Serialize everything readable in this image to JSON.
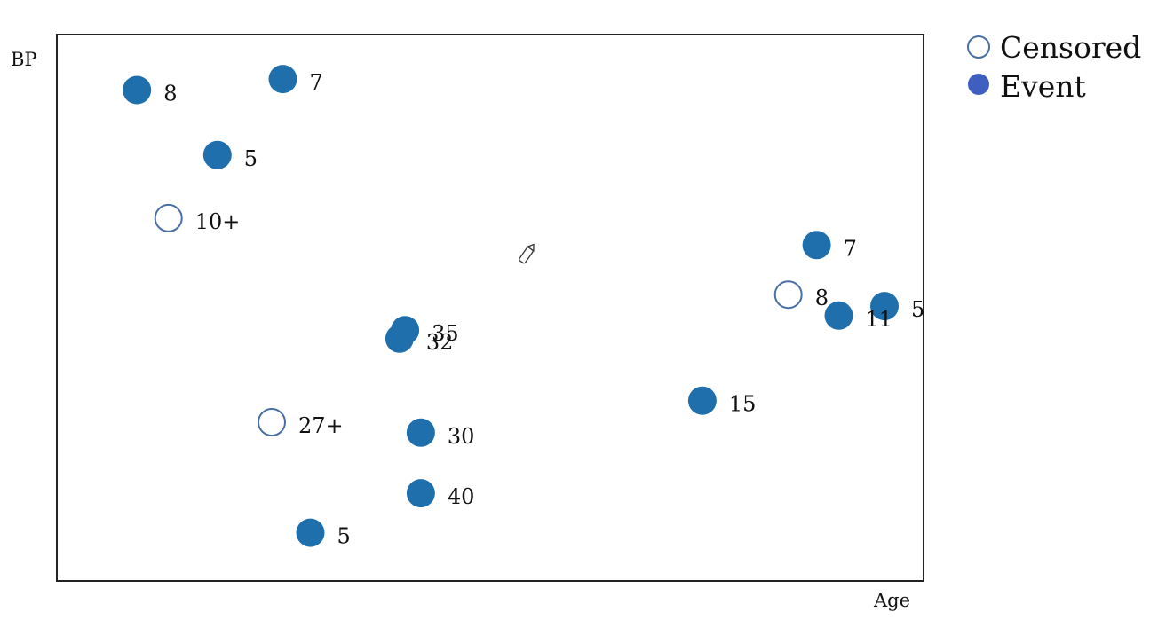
{
  "colors": {
    "event_fill": "#1f6fad",
    "censored_stroke": "#4a6fa5",
    "legend_event_fill": "#3f5fc0",
    "frame": "#222222",
    "text": "#111111"
  },
  "icons": {
    "cursor": "pencil-cursor-icon"
  },
  "chart_data": {
    "type": "scatter",
    "xlabel": "Age",
    "ylabel": "BP",
    "xlim": [
      0,
      100
    ],
    "ylim": [
      0,
      100
    ],
    "grid": false,
    "legend_position": "outside-top-right",
    "legend": [
      {
        "label": "Censored",
        "marker": "open-circle"
      },
      {
        "label": "Event",
        "marker": "filled-circle"
      }
    ],
    "series": [
      {
        "name": "Event",
        "points": [
          {
            "x": 5.2,
            "y": 93.0,
            "label": "8"
          },
          {
            "x": 23.7,
            "y": 95.2,
            "label": "7"
          },
          {
            "x": 15.4,
            "y": 80.0,
            "label": "5"
          },
          {
            "x": 91.4,
            "y": 62.0,
            "label": "7"
          },
          {
            "x": 94.2,
            "y": 47.9,
            "label": "11"
          },
          {
            "x": 100.0,
            "y": 49.8,
            "label": "5"
          },
          {
            "x": 39.2,
            "y": 45.0,
            "label": "35"
          },
          {
            "x": 38.5,
            "y": 43.3,
            "label": "32"
          },
          {
            "x": 76.9,
            "y": 30.9,
            "label": "15"
          },
          {
            "x": 41.2,
            "y": 24.5,
            "label": "30"
          },
          {
            "x": 41.2,
            "y": 12.4,
            "label": "40"
          },
          {
            "x": 27.2,
            "y": 4.5,
            "label": "5"
          }
        ]
      },
      {
        "name": "Censored",
        "points": [
          {
            "x": 9.2,
            "y": 67.4,
            "label": "10+"
          },
          {
            "x": 87.8,
            "y": 52.1,
            "label": "8"
          },
          {
            "x": 22.3,
            "y": 26.6,
            "label": "27+"
          }
        ]
      }
    ]
  }
}
